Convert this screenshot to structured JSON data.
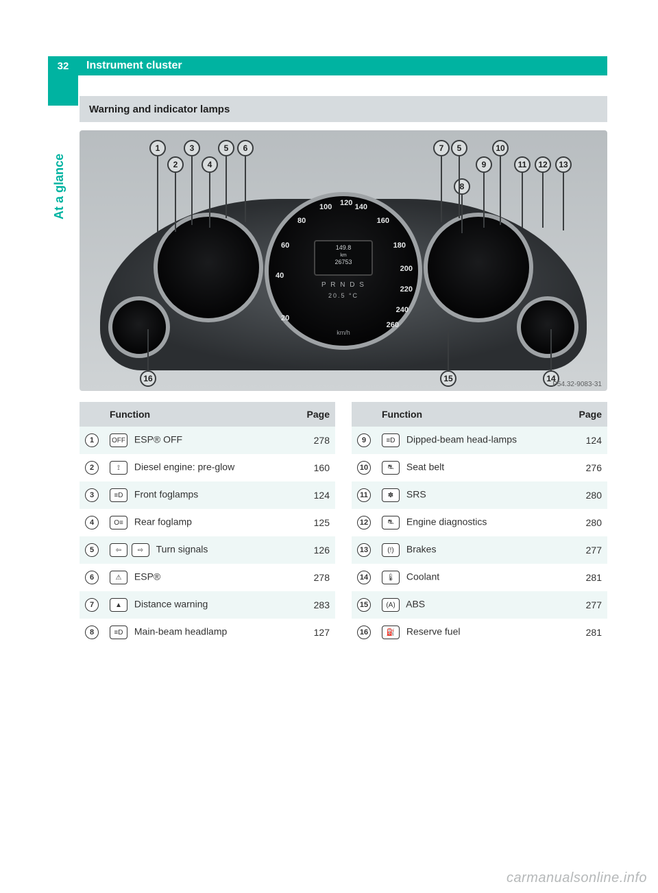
{
  "page_number": "32",
  "header_title": "Instrument cluster",
  "side_label": "At a glance",
  "section_title": "Warning and indicator lamps",
  "figure": {
    "code": "P54.32-9083-31",
    "lcd_top": "149.8",
    "lcd_unit": "km",
    "lcd_bottom": "26753",
    "prnd": "P R N D S",
    "temp": "20.5 °C",
    "kmh": "km/h",
    "speed_marks": [
      "20",
      "40",
      "60",
      "80",
      "100",
      "120",
      "140",
      "160",
      "180",
      "200",
      "220",
      "240",
      "260"
    ],
    "callouts_top_left": [
      "1",
      "2",
      "3",
      "4",
      "5",
      "6"
    ],
    "callouts_top_right": [
      "7",
      "5",
      "8",
      "9",
      "10",
      "11",
      "12",
      "13"
    ],
    "callouts_bottom": [
      "16",
      "15",
      "14"
    ],
    "colors": {
      "panel": "#cfd3d5",
      "ring": "#9ea2a5",
      "dial": "#0b0c0d"
    }
  },
  "table_header_function": "Function",
  "table_header_page": "Page",
  "left_rows": [
    {
      "n": "1",
      "sym": "OFF",
      "label": "ESP® OFF",
      "page": "278"
    },
    {
      "n": "2",
      "sym": "⟟",
      "label": "Diesel engine: pre-glow",
      "page": "160"
    },
    {
      "n": "3",
      "sym": "≡D",
      "label": "Front foglamps",
      "page": "124"
    },
    {
      "n": "4",
      "sym": "O≡",
      "label": "Rear foglamp",
      "page": "125"
    },
    {
      "n": "5",
      "sym": "⇄",
      "label": "Turn signals",
      "page": "126",
      "dual": true
    },
    {
      "n": "6",
      "sym": "⚠",
      "label": "ESP®",
      "page": "278"
    },
    {
      "n": "7",
      "sym": "▲",
      "label": "Distance warning",
      "page": "283"
    },
    {
      "n": "8",
      "sym": "≡D",
      "label": "Main-beam headlamp",
      "page": "127"
    }
  ],
  "right_rows": [
    {
      "n": "9",
      "sym": "≡D",
      "label": "Dipped-beam head-lamps",
      "page": "124"
    },
    {
      "n": "10",
      "sym": "⛐",
      "label": "Seat belt",
      "page": "276"
    },
    {
      "n": "11",
      "sym": "✽",
      "label": "SRS",
      "page": "280"
    },
    {
      "n": "12",
      "sym": "⛐",
      "label": "Engine diagnostics",
      "page": "280"
    },
    {
      "n": "13",
      "sym": "(!)",
      "label": "Brakes",
      "page": "277"
    },
    {
      "n": "14",
      "sym": "🌡",
      "label": "Coolant",
      "page": "281"
    },
    {
      "n": "15",
      "sym": "(A)",
      "label": "ABS",
      "page": "277"
    },
    {
      "n": "16",
      "sym": "⛽",
      "label": "Reserve fuel",
      "page": "281"
    }
  ],
  "watermark": "carmanualsonline.info"
}
